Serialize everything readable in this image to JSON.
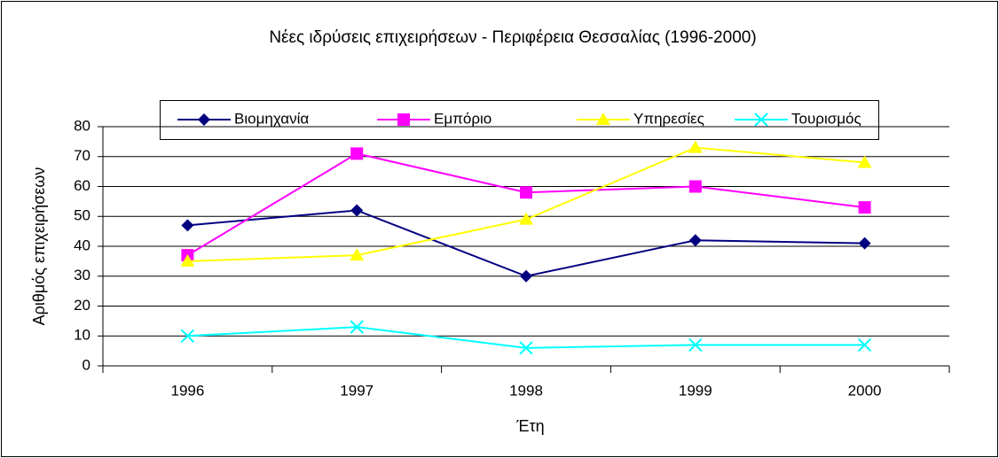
{
  "chart_data": {
    "type": "line",
    "title": "Νέες ιδρύσεις επιχειρήσεων - Περιφέρεια Θεσσαλίας (1996-2000)",
    "x_label": "Έτη",
    "y_label": "Αριθμός επιχειρήσεων",
    "categories": [
      "1996",
      "1997",
      "1998",
      "1999",
      "2000"
    ],
    "series": [
      {
        "name": "Βιομηχανία",
        "color": "#000080",
        "marker": "diamond",
        "values": [
          47,
          52,
          30,
          42,
          41
        ]
      },
      {
        "name": "Εμπόριο",
        "color": "#ff00ff",
        "marker": "square",
        "values": [
          37,
          71,
          58,
          60,
          53
        ]
      },
      {
        "name": "Υπηρεσίες",
        "color": "#ffff00",
        "marker": "triangle",
        "values": [
          35,
          37,
          49,
          73,
          68
        ]
      },
      {
        "name": "Τουρισμός",
        "color": "#00ffff",
        "marker": "x",
        "values": [
          10,
          13,
          6,
          7,
          7
        ]
      }
    ],
    "ylim": [
      0,
      80
    ],
    "yticks": [
      0,
      10,
      20,
      30,
      40,
      50,
      60,
      70,
      80
    ],
    "grid": true,
    "legend": "top"
  }
}
